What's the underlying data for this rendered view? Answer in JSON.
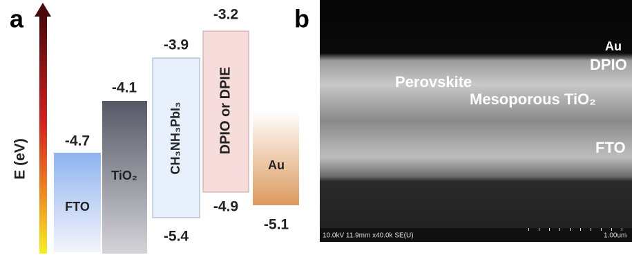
{
  "panel_a": {
    "label": "a",
    "axis_label": "E (eV)",
    "materials": [
      {
        "name": "FTO",
        "top": "-4.7"
      },
      {
        "name": "TiO₂",
        "top": "-4.1"
      },
      {
        "name": "CH₃NH₃PbI₃",
        "top": "-3.9",
        "bottom": "-5.4"
      },
      {
        "name": "DPIO or DPIE",
        "top": "-3.2",
        "bottom": "-4.9"
      },
      {
        "name": "Au",
        "bottom": "-5.1"
      }
    ]
  },
  "panel_b": {
    "label": "b",
    "annotations": [
      "Au",
      "DPIO",
      "Perovskite",
      "Mesoporous TiO₂",
      "FTO"
    ],
    "info_bar": "10.0kV 11.9mm x40.0k SE(U)",
    "scale_bar": "1.00um"
  }
}
